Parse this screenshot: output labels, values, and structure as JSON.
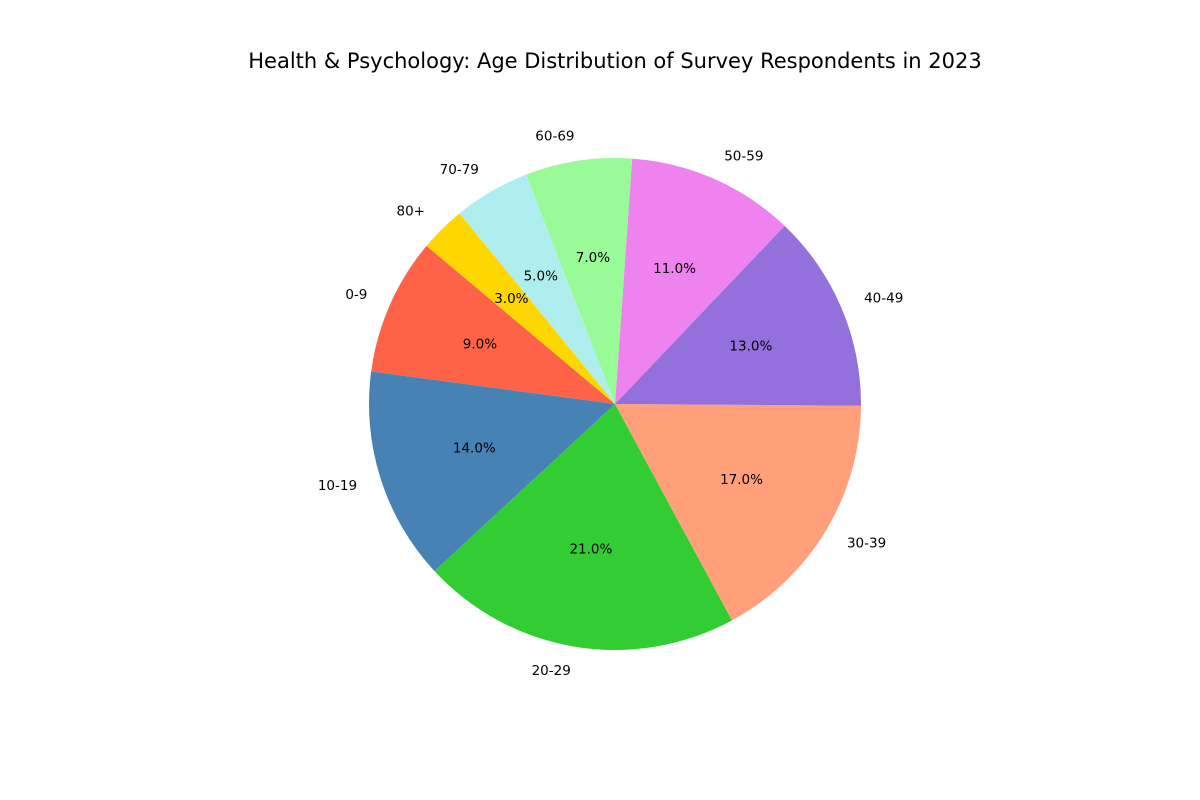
{
  "chart_data": {
    "type": "pie",
    "title": "Health & Psychology: Age Distribution of Survey Respondents in 2023",
    "categories": [
      "0-9",
      "10-19",
      "20-29",
      "30-39",
      "40-49",
      "50-59",
      "60-69",
      "70-79",
      "80+"
    ],
    "values": [
      9,
      14,
      21,
      17,
      13,
      11,
      7,
      5,
      3
    ],
    "percent_labels": [
      "9.0%",
      "14.0%",
      "21.0%",
      "17.0%",
      "13.0%",
      "11.0%",
      "7.0%",
      "5.0%",
      "3.0%"
    ],
    "colors": [
      "#FF6347",
      "#4682B4",
      "#32CD32",
      "#FFA07A",
      "#9370DB",
      "#EE82EE",
      "#98FB98",
      "#AFEEEE",
      "#FFD700"
    ],
    "legend": "none"
  }
}
